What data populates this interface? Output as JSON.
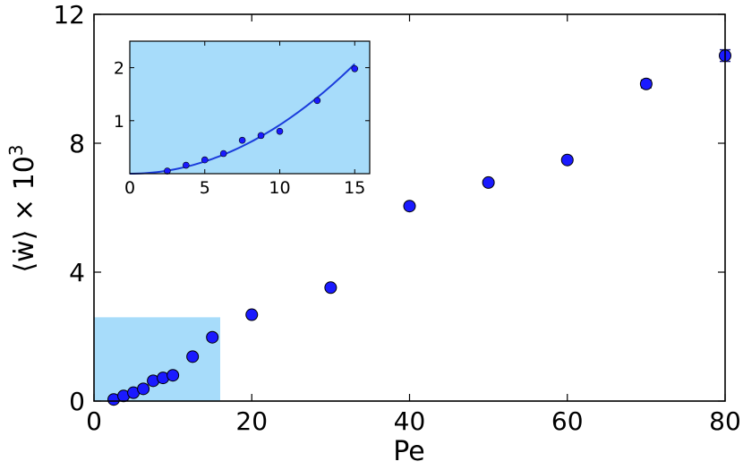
{
  "chart_data": [
    {
      "type": "scatter",
      "xlabel": "Pe",
      "ylabel_main": "⟨ẇ⟩ × 10",
      "ylabel_exp": "3",
      "xlim": [
        0,
        80
      ],
      "ylim": [
        0,
        12
      ],
      "xticks": [
        0,
        20,
        40,
        60,
        80
      ],
      "yticks": [
        0,
        4,
        8,
        12
      ],
      "xtick_labels": [
        "0",
        "20",
        "40",
        "60",
        "80"
      ],
      "ytick_labels": [
        "0",
        "4",
        "8",
        "12"
      ],
      "highlight_region": {
        "x": [
          0,
          16
        ],
        "y": [
          0,
          2.6
        ],
        "color": "#a7dcfa"
      },
      "marker_color": "#1a1aff",
      "grid": false,
      "series": [
        {
          "x": [
            2.5,
            3.75,
            5,
            6.25,
            7.5,
            8.75,
            10,
            12.5,
            15,
            20,
            30,
            40,
            50,
            60,
            70,
            80
          ],
          "y": [
            0.05,
            0.16,
            0.26,
            0.38,
            0.63,
            0.72,
            0.8,
            1.38,
            1.98,
            2.68,
            3.52,
            6.05,
            6.78,
            7.48,
            9.84,
            10.72
          ],
          "yerr": [
            0,
            0,
            0,
            0,
            0,
            0,
            0,
            0,
            0,
            0,
            0,
            0,
            0,
            0,
            0.12,
            0.18
          ]
        }
      ]
    },
    {
      "type": "scatter",
      "inset": true,
      "xlim": [
        0,
        16
      ],
      "ylim": [
        0,
        2.5
      ],
      "xticks": [
        0,
        5,
        10,
        15
      ],
      "yticks": [
        1,
        2
      ],
      "xtick_labels": [
        "0",
        "5",
        "10",
        "15"
      ],
      "ytick_labels": [
        "1",
        "2"
      ],
      "background": "#a7dcfa",
      "marker_color": "#1a1aff",
      "line_color": "#1a3cdc",
      "fit": {
        "form": "a*x^n",
        "a": 0.0092,
        "n": 2,
        "x_range": [
          0,
          15
        ]
      },
      "series": [
        {
          "x": [
            2.5,
            3.75,
            5,
            6.25,
            7.5,
            8.75,
            10,
            12.5,
            15
          ],
          "y": [
            0.05,
            0.16,
            0.26,
            0.38,
            0.63,
            0.72,
            0.8,
            1.38,
            1.98
          ]
        }
      ]
    }
  ]
}
